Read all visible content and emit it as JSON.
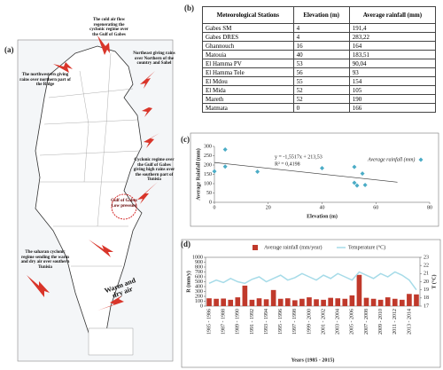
{
  "panels": [
    "(a)",
    "(b)",
    "(c)",
    "(d)"
  ],
  "map": {
    "annotations": [
      "The northwestern giving rains over northern part of the Ridge",
      "The cold air flow regenerating the cyclonic regime over the Gulf of Gabes",
      "Northeast giving rains over Northern of the country and Sahel",
      "Cyclonic regime over the Gulf of Gabes giving high rains over the southern part of Tunisia",
      "Gulf of Gabes Low pressure",
      "The saharan cyclonic regime sending the warm and dry air over southern Tunisia",
      "Warm and dry air"
    ]
  },
  "table": {
    "header": [
      "Meteorological Stations",
      "Elevation (m)",
      "Average rainfall (mm)"
    ],
    "rows": [
      [
        "Gabes SM",
        "4",
        "191,4"
      ],
      [
        "Gabes DRES",
        "4",
        "283,22"
      ],
      [
        "Ghannouch",
        "16",
        "164"
      ],
      [
        "Matouia",
        "40",
        "183,51"
      ],
      [
        "El Hamma PV",
        "53",
        "90,04"
      ],
      [
        "El Hamma Tele",
        "56",
        "93"
      ],
      [
        "El Mdou",
        "55",
        "154"
      ],
      [
        "El Mida",
        "52",
        "105"
      ],
      [
        "Mareth",
        "52",
        "190"
      ],
      [
        "Matmata",
        "0",
        "166"
      ]
    ]
  },
  "chart_data": [
    {
      "type": "scatter",
      "xlabel": "Elevation (m)",
      "ylabel": "Average Rainfall (mm)",
      "x": [
        4,
        4,
        16,
        40,
        53,
        56,
        55,
        52,
        52,
        0
      ],
      "values": [
        191.4,
        283.22,
        164,
        183.51,
        90.04,
        93,
        154,
        105,
        190,
        166
      ],
      "color": "#4bacc6",
      "legend_label": "Average rainfall (mm)",
      "trendline": {
        "slope": -1.5517,
        "intercept": 213.53,
        "color": "#333333"
      },
      "annotations": [
        "y = -1,5517x + 213,53",
        "R² = 0,4198"
      ],
      "xlim": [
        0,
        80
      ],
      "xticks": [
        0,
        20,
        40,
        60,
        80
      ],
      "ylim": [
        0,
        300
      ],
      "yticks": [
        0,
        50,
        100,
        150,
        200,
        250,
        300
      ]
    },
    {
      "type": "bar-line",
      "xlabel": "Years (1985 - 2015)",
      "ylabel": "R (mm/y)",
      "y2label": "T (°C)",
      "categories": [
        "1985 - 1986",
        null,
        "1987 - 1988",
        null,
        "1989 - 1990",
        null,
        "1991 - 1992",
        null,
        "1993 - 1994",
        null,
        "1995 - 1996",
        null,
        "1997 - 1998",
        null,
        "1999 - 2000",
        null,
        "2001 - 2002",
        null,
        "2003 - 2004",
        null,
        "2005 - 2006",
        null,
        "2007 - 2008",
        null,
        "2009 - 2010",
        null,
        "2011 - 2012",
        null,
        "2013 - 2014",
        null
      ],
      "series": [
        {
          "name": "Average rainfall (mm/year)",
          "color": "#c0392b",
          "values": [
            160,
            150,
            155,
            130,
            180,
            420,
            130,
            160,
            140,
            330,
            150,
            160,
            120,
            150,
            180,
            140,
            130,
            170,
            160,
            150,
            220,
            640,
            170,
            150,
            130,
            180,
            150,
            130,
            250,
            240
          ]
        },
        {
          "name": "Temperature (°C)",
          "color": "#a6dbe8",
          "axis": "y2",
          "values": [
            19.8,
            20.2,
            19.9,
            20.4,
            20.0,
            19.8,
            20.3,
            20.6,
            20.0,
            20.4,
            20.8,
            20.2,
            20.5,
            21.0,
            20.6,
            20.2,
            20.8,
            20.4,
            21.0,
            20.6,
            20.2,
            21.2,
            20.8,
            20.4,
            21.0,
            20.6,
            21.2,
            20.8,
            20.2,
            19.0
          ]
        }
      ],
      "ylim": [
        0,
        1000
      ],
      "yticks": [
        0,
        100,
        200,
        300,
        400,
        500,
        600,
        700,
        800,
        900,
        1000
      ],
      "y2lim": [
        17,
        23
      ],
      "y2ticks": [
        17,
        18,
        19,
        20,
        21,
        22,
        23
      ]
    }
  ]
}
